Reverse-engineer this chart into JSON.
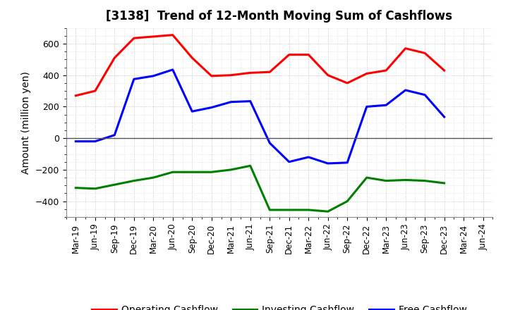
{
  "title": "[3138]  Trend of 12-Month Moving Sum of Cashflows",
  "ylabel": "Amount (million yen)",
  "x_labels": [
    "Mar-19",
    "Jun-19",
    "Sep-19",
    "Dec-19",
    "Mar-20",
    "Jun-20",
    "Sep-20",
    "Dec-20",
    "Mar-21",
    "Jun-21",
    "Sep-21",
    "Dec-21",
    "Mar-22",
    "Jun-22",
    "Sep-22",
    "Dec-22",
    "Mar-23",
    "Jun-23",
    "Sep-23",
    "Dec-23",
    "Mar-24",
    "Jun-24"
  ],
  "operating_cashflow": [
    270,
    300,
    510,
    635,
    645,
    655,
    510,
    395,
    400,
    415,
    420,
    530,
    530,
    400,
    350,
    410,
    430,
    570,
    540,
    430,
    null,
    null
  ],
  "investing_cashflow": [
    -315,
    -320,
    -295,
    -270,
    -250,
    -215,
    -215,
    -215,
    -200,
    -175,
    -455,
    -455,
    -455,
    -465,
    -400,
    -250,
    -270,
    -265,
    -270,
    -285,
    null,
    null
  ],
  "free_cashflow": [
    -20,
    -20,
    20,
    375,
    395,
    435,
    170,
    195,
    230,
    235,
    -30,
    -150,
    -120,
    -160,
    -155,
    200,
    210,
    305,
    275,
    135,
    null,
    null
  ],
  "operating_color": "#FF0000",
  "investing_color": "#008000",
  "free_color": "#0000FF",
  "ylim": [
    -500,
    700
  ],
  "yticks": [
    -400,
    -200,
    0,
    200,
    400,
    600
  ],
  "background_color": "#FFFFFF",
  "grid_color": "#AAAAAA",
  "line_width": 2.2,
  "title_fontsize": 12,
  "legend_fontsize": 10,
  "axis_fontsize": 9,
  "ylabel_fontsize": 10
}
